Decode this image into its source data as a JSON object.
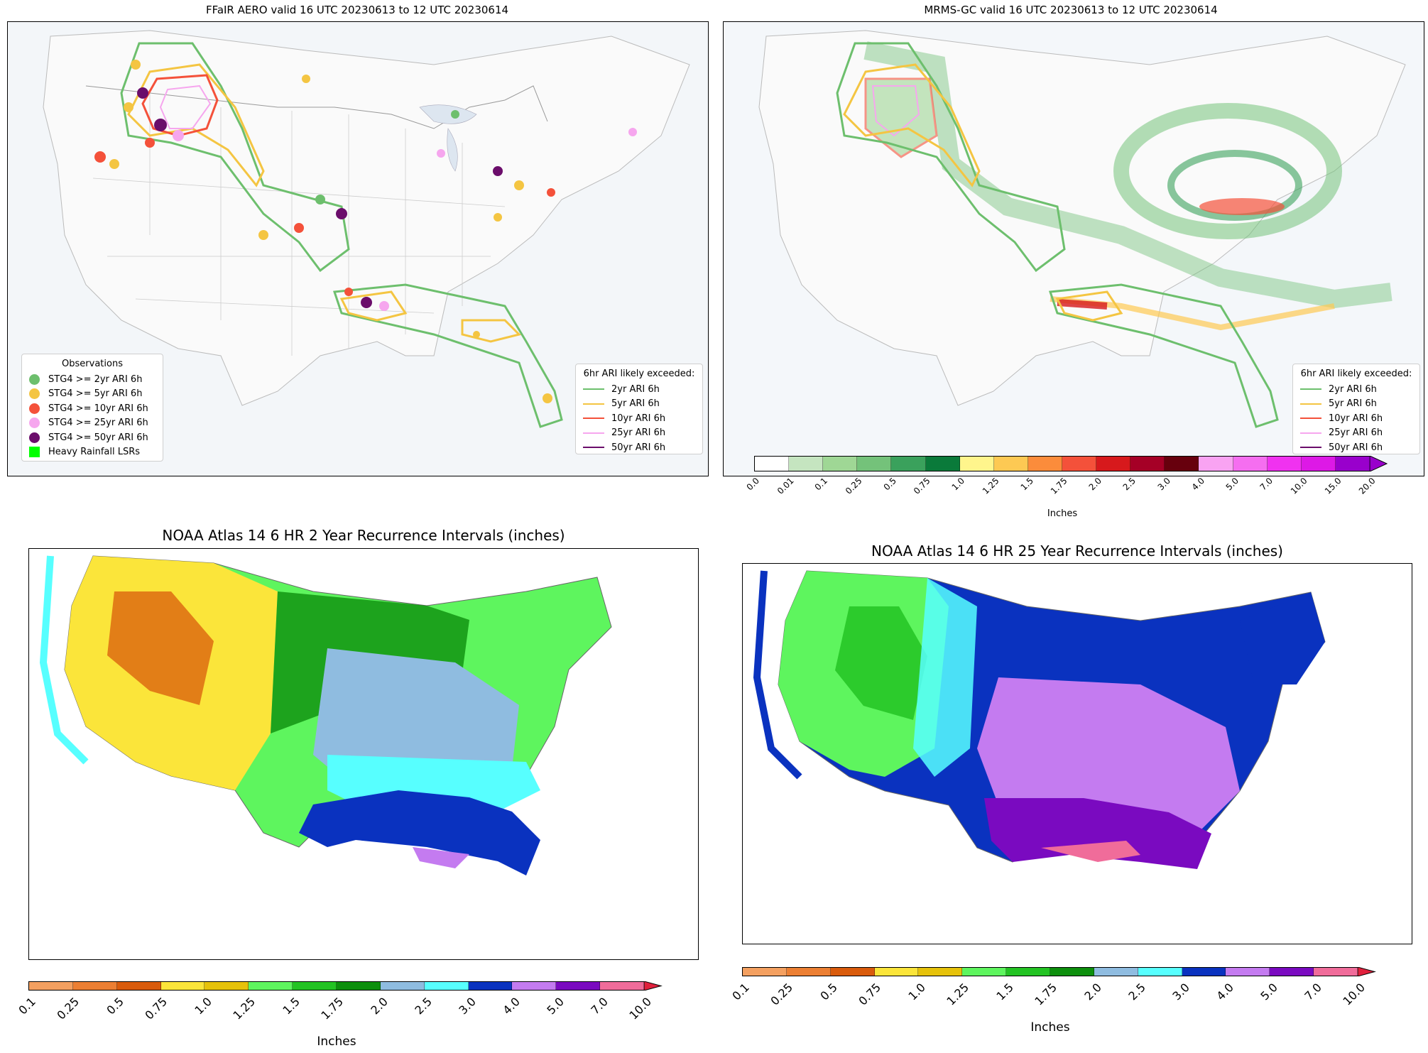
{
  "panels": {
    "ffair": {
      "title": "FFaIR AERO valid 16 UTC 20230613 to 12 UTC 20230614",
      "obs_legend": {
        "title": "Observations",
        "items": [
          {
            "label": "STG4 >= 2yr ARI 6h",
            "color": "#6dbf6d"
          },
          {
            "label": "STG4 >= 5yr ARI 6h",
            "color": "#f4c542"
          },
          {
            "label": "STG4 >= 10yr ARI 6h",
            "color": "#f4513a"
          },
          {
            "label": "STG4 >= 25yr ARI 6h",
            "color": "#f6a6ee"
          },
          {
            "label": "STG4 >= 50yr ARI 6h",
            "color": "#6b0d6b"
          },
          {
            "label": "Heavy Rainfall LSRs",
            "color": "#00ff00"
          }
        ]
      },
      "ari_legend": {
        "title": "6hr ARI likely exceeded:",
        "items": [
          {
            "label": "2yr ARI 6h",
            "color": "#6dbf6d"
          },
          {
            "label": "5yr ARI 6h",
            "color": "#f4c542"
          },
          {
            "label": "10yr ARI 6h",
            "color": "#f4513a"
          },
          {
            "label": "25yr ARI 6h",
            "color": "#f6a6ee"
          },
          {
            "label": "50yr ARI 6h",
            "color": "#6b0d6b"
          }
        ]
      }
    },
    "mrms": {
      "title": "MRMS-GC valid 16 UTC 20230613 to 12 UTC 20230614",
      "ari_legend": {
        "title": "6hr ARI likely exceeded:",
        "items": [
          {
            "label": "2yr ARI 6h",
            "color": "#6dbf6d"
          },
          {
            "label": "5yr ARI 6h",
            "color": "#f4c542"
          },
          {
            "label": "10yr ARI 6h",
            "color": "#f4513a"
          },
          {
            "label": "25yr ARI 6h",
            "color": "#f6a6ee"
          },
          {
            "label": "50yr ARI 6h",
            "color": "#6b0d6b"
          }
        ]
      },
      "colorbar": {
        "ticks": [
          "0.0",
          "0.01",
          "0.1",
          "0.25",
          "0.5",
          "0.75",
          "1.0",
          "1.25",
          "1.5",
          "1.75",
          "2.0",
          "2.5",
          "3.0",
          "4.0",
          "5.0",
          "7.0",
          "10.0",
          "15.0",
          "20.0"
        ],
        "colors": [
          "#ffffff",
          "#c5e5c0",
          "#9fd795",
          "#74c27a",
          "#3aa15c",
          "#0a7a3a",
          "#fff58c",
          "#fdc953",
          "#fb8c3b",
          "#f4513a",
          "#d7191c",
          "#a50026",
          "#67000d",
          "#f9a3f2",
          "#f56ef0",
          "#f032f0",
          "#dd19e6",
          "#9900cc"
        ],
        "label": "Inches"
      }
    },
    "noaa2": {
      "title": "NOAA Atlas 14 6 HR 2 Year Recurrence Intervals (inches)",
      "colorbar": {
        "ticks": [
          "0.1",
          "0.25",
          "0.5",
          "0.75",
          "1.0",
          "1.25",
          "1.5",
          "1.75",
          "2.0",
          "2.5",
          "3.0",
          "4.0",
          "5.0",
          "7.0",
          "10.0"
        ],
        "colors": [
          "#f4a060",
          "#ec7f33",
          "#d95b0c",
          "#fbe53a",
          "#e6c20a",
          "#5ef55e",
          "#23c323",
          "#0d8f0d",
          "#8fbce0",
          "#57ffff",
          "#0a32bf",
          "#c47bf0",
          "#7a0ac0",
          "#f06c9a"
        ],
        "label": "Inches"
      }
    },
    "noaa25": {
      "title": "NOAA Atlas 14 6 HR 25 Year Recurrence Intervals (inches)",
      "colorbar": {
        "ticks": [
          "0.1",
          "0.25",
          "0.5",
          "0.75",
          "1.0",
          "1.25",
          "1.5",
          "1.75",
          "2.0",
          "2.5",
          "3.0",
          "4.0",
          "5.0",
          "7.0",
          "10.0"
        ],
        "colors": [
          "#f4a060",
          "#ec7f33",
          "#d95b0c",
          "#fbe53a",
          "#e6c20a",
          "#5ef55e",
          "#23c323",
          "#0d8f0d",
          "#8fbce0",
          "#57ffff",
          "#0a32bf",
          "#c47bf0",
          "#7a0ac0",
          "#f06c9a"
        ],
        "label": "Inches"
      }
    }
  }
}
